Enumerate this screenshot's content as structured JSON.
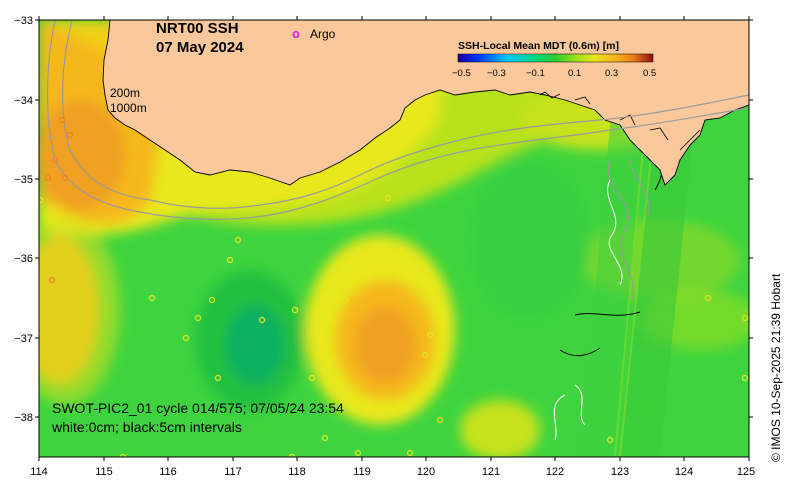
{
  "title": {
    "product": "NRT00 SSH",
    "date": "07 May 2024"
  },
  "legend": {
    "argo_symbol": "o",
    "argo_label": "Argo",
    "argo_color": "#e020e0"
  },
  "isobaths": {
    "shallow": "200m",
    "deep": "1000m"
  },
  "colorbar": {
    "title": "SSH-Local Mean MDT (0.6m) [m]",
    "ticks": [
      "−0.5",
      "−0.3",
      "−0.1",
      "0.1",
      "0.3",
      "0.5"
    ],
    "colors": [
      "#1a0099",
      "#0033ff",
      "#00c8ff",
      "#00d97a",
      "#2ecc2e",
      "#9adf1e",
      "#e8e81a",
      "#f5b81a",
      "#ef7a1a",
      "#d03a14",
      "#8c1010"
    ]
  },
  "axes": {
    "x_ticks": [
      "114",
      "115",
      "116",
      "117",
      "118",
      "119",
      "120",
      "121",
      "122",
      "123",
      "124",
      "125"
    ],
    "y_ticks": [
      "−33",
      "−34",
      "−35",
      "−36",
      "−37",
      "−38"
    ]
  },
  "annotation": {
    "line1": "SWOT-PIC2_01 cycle 014/575; 07/05/24 23:54",
    "line2": "white:0cm; black:5cm intervals"
  },
  "credit": "© IMOS 10-Sep-2025 21:39 Hobart",
  "colors": {
    "land": "#fac89a",
    "green": "#3fd43f",
    "yellow": "#f0e818",
    "orange": "#f5a020"
  }
}
